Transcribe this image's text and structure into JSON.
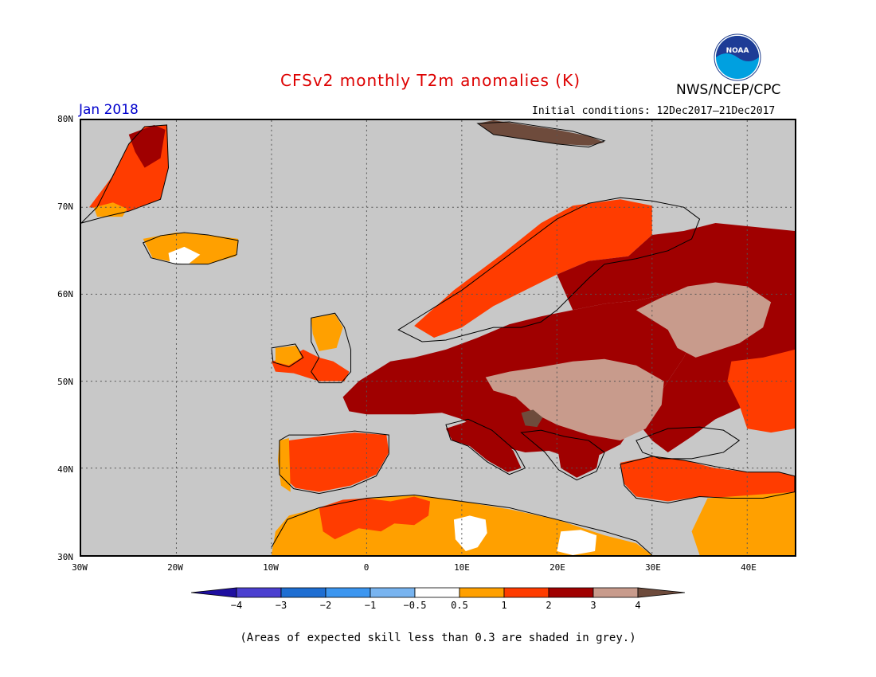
{
  "title": "CFSv2 monthly T2m anomalies (K)",
  "agency": "NWS/NCEP/CPC",
  "logo_text": "NOAA",
  "month": "Jan 2018",
  "initial_conditions": "Initial conditions: 12Dec2017–21Dec2017",
  "footnote": "(Areas of expected skill less than 0.3 are shaded in grey.)",
  "lat_labels": [
    "80N",
    "70N",
    "60N",
    "50N",
    "40N",
    "30N"
  ],
  "lon_labels": [
    "30W",
    "20W",
    "10W",
    "0",
    "10E",
    "20E",
    "30E",
    "40E"
  ],
  "colorbar": {
    "tick_labels": [
      "−4",
      "−3",
      "−2",
      "−1",
      "−0.5",
      "0.5",
      "1",
      "2",
      "3",
      "4"
    ],
    "colors": [
      "#1e0fa0",
      "#4b3fd0",
      "#1e6ed2",
      "#3c96f0",
      "#78b4f0",
      "#ffffff",
      "#ffa000",
      "#ff3c00",
      "#a00000",
      "#c89b8c",
      "#6e4b3c"
    ]
  },
  "map_colors": {
    "grey": "#c8c8c8",
    "orange": "#ffa000",
    "red": "#ff3c00",
    "darkred": "#a00000",
    "pink": "#c89b8c",
    "brown": "#6e4b3c",
    "white": "#ffffff"
  }
}
